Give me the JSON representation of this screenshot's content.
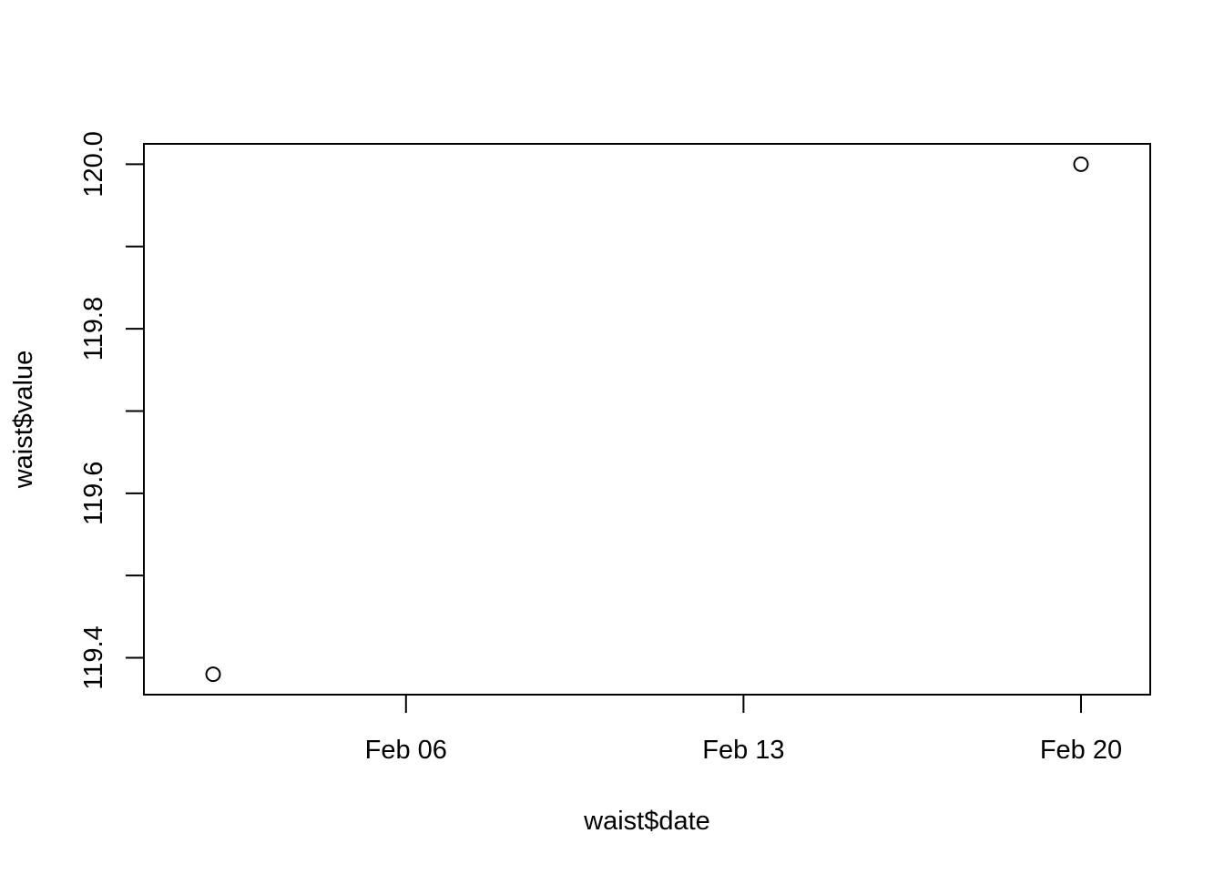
{
  "chart_data": {
    "type": "scatter",
    "xlabel": "waist$date",
    "ylabel": "waist$value",
    "x_type": "date",
    "x_ticks": [
      {
        "label": "Feb 06",
        "day": 6
      },
      {
        "label": "Feb 13",
        "day": 13
      },
      {
        "label": "Feb 20",
        "day": 20
      }
    ],
    "y_ticks": [
      {
        "label": "119.4",
        "value": 119.4
      },
      {
        "label": "119.5",
        "value": 119.5,
        "unlabeled": true
      },
      {
        "label": "119.6",
        "value": 119.6
      },
      {
        "label": "119.7",
        "value": 119.7,
        "unlabeled": true
      },
      {
        "label": "119.8",
        "value": 119.8
      },
      {
        "label": "119.9",
        "value": 119.9,
        "unlabeled": true
      },
      {
        "label": "120.0",
        "value": 120.0
      }
    ],
    "points": [
      {
        "date": "Feb 02",
        "day": 2,
        "y": 119.38
      },
      {
        "date": "Feb 20",
        "day": 20,
        "y": 120.0
      }
    ],
    "xlim_days": [
      0.564,
      21.436
    ],
    "ylim": [
      119.3552,
      120.0248
    ],
    "marker": "open-circle",
    "color": "#000000",
    "grid": false,
    "legend": "none"
  }
}
